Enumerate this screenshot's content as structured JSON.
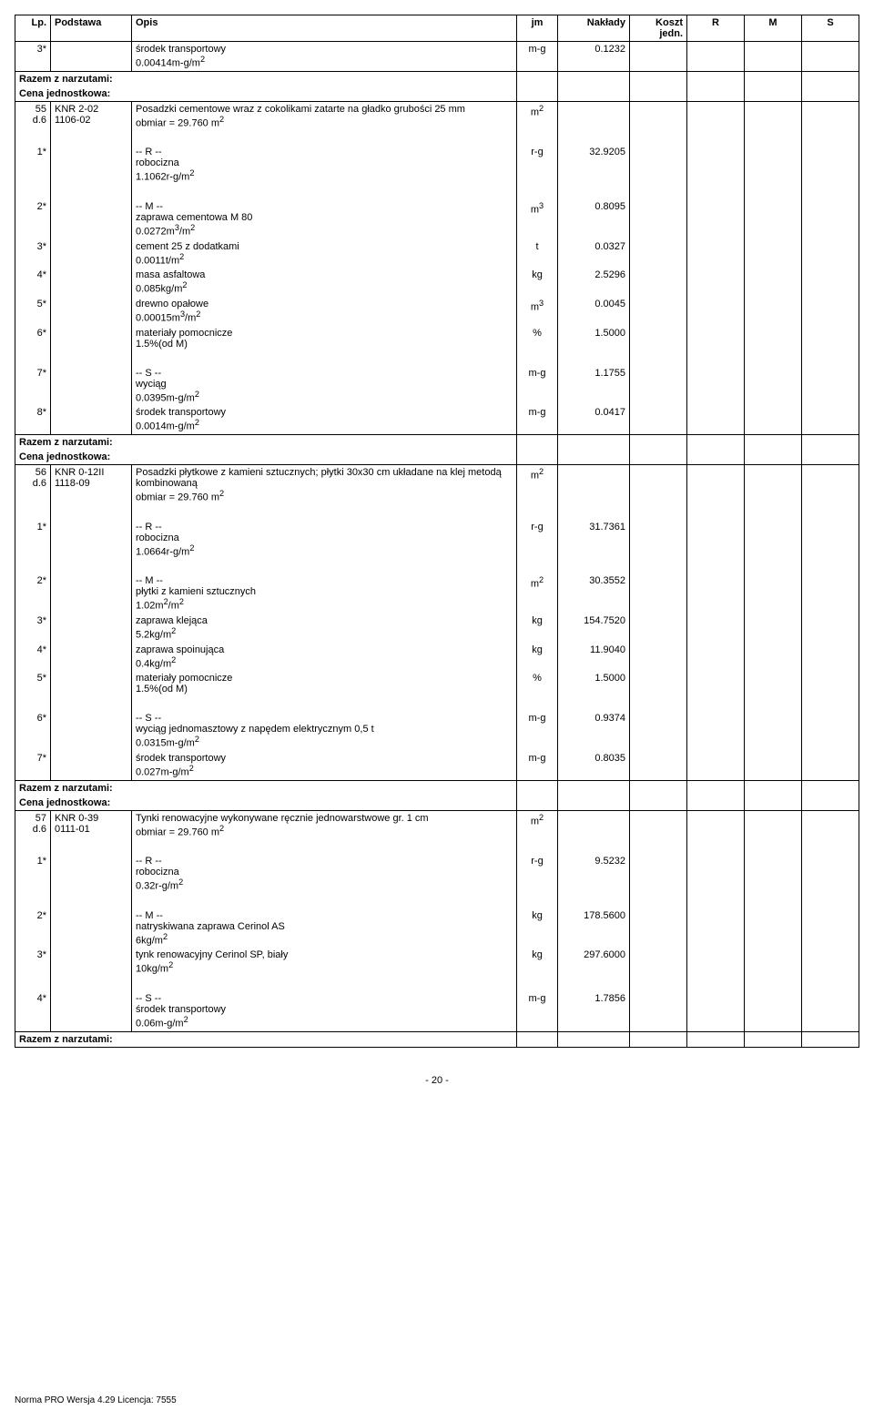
{
  "headers": {
    "lp": "Lp.",
    "podstawa": "Podstawa",
    "opis": "Opis",
    "jm": "jm",
    "naklady": "Nakłady",
    "koszt": "Koszt jedn.",
    "r": "R",
    "m": "M",
    "s": "S"
  },
  "rows": [
    {
      "lp": "3*",
      "podstawa": "",
      "opis": "środek transportowy\n0.00414m-g/m2",
      "jm": "m-g",
      "naklady": "0.1232",
      "border": "noborder-t"
    },
    {
      "lp": "",
      "podstawa": "",
      "opis_bold": "Razem z narzutami:",
      "border": "noborder-tb",
      "span_razem": true
    },
    {
      "lp": "",
      "podstawa": "",
      "opis_bold": "Cena jednostkowa:",
      "border": "noborder-t",
      "span_razem": true
    },
    {
      "lp": "55\nd.6",
      "podstawa": "KNR 2-02\n1106-02",
      "opis": "Posadzki cementowe wraz z cokolikami zatarte na gładko grubości 25 mm\nobmiar  = 29.760 m2",
      "jm": "m2",
      "naklady": "",
      "border": "noborder-b"
    },
    {
      "lp": "",
      "podstawa": "",
      "opis": "",
      "jm": "",
      "naklady": "",
      "border": "noborder-tb",
      "spacer": true
    },
    {
      "lp": "1*",
      "podstawa": "",
      "opis": "-- R --\nrobocizna\n1.1062r-g/m2",
      "jm": "r-g",
      "naklady": "32.9205",
      "border": "noborder-tb"
    },
    {
      "lp": "",
      "podstawa": "",
      "opis": "",
      "jm": "",
      "naklady": "",
      "border": "noborder-tb",
      "spacer": true
    },
    {
      "lp": "2*",
      "podstawa": "",
      "opis": "-- M --\nzaprawa cementowa M 80\n0.0272m3/m2",
      "jm": "m3",
      "naklady": "0.8095",
      "border": "noborder-tb"
    },
    {
      "lp": "3*",
      "podstawa": "",
      "opis": "cement 25 z dodatkami\n0.0011t/m2",
      "jm": "t",
      "naklady": "0.0327",
      "border": "noborder-tb"
    },
    {
      "lp": "4*",
      "podstawa": "",
      "opis": "masa asfaltowa\n0.085kg/m2",
      "jm": "kg",
      "naklady": "2.5296",
      "border": "noborder-tb"
    },
    {
      "lp": "5*",
      "podstawa": "",
      "opis": "drewno opałowe\n0.00015m3/m2",
      "jm": "m3",
      "naklady": "0.0045",
      "border": "noborder-tb"
    },
    {
      "lp": "6*",
      "podstawa": "",
      "opis": "materiały pomocnicze\n1.5%(od M)",
      "jm": "%",
      "naklady": "1.5000",
      "border": "noborder-tb"
    },
    {
      "lp": "",
      "podstawa": "",
      "opis": "",
      "jm": "",
      "naklady": "",
      "border": "noborder-tb",
      "spacer": true
    },
    {
      "lp": "7*",
      "podstawa": "",
      "opis": "-- S --\nwyciąg\n0.0395m-g/m2",
      "jm": "m-g",
      "naklady": "1.1755",
      "border": "noborder-tb"
    },
    {
      "lp": "8*",
      "podstawa": "",
      "opis": "środek transportowy\n0.0014m-g/m2",
      "jm": "m-g",
      "naklady": "0.0417",
      "border": "noborder-t"
    },
    {
      "lp": "",
      "podstawa": "",
      "opis_bold": "Razem z narzutami:",
      "border": "noborder-tb",
      "span_razem": true
    },
    {
      "lp": "",
      "podstawa": "",
      "opis_bold": "Cena jednostkowa:",
      "border": "noborder-t",
      "span_razem": true
    },
    {
      "lp": "56\nd.6",
      "podstawa": "KNR 0-12II\n1118-09",
      "opis": "Posadzki płytkowe z kamieni sztucznych; płytki 30x30 cm układane na klej metodą kombinowaną\nobmiar  = 29.760 m2",
      "jm": "m2",
      "naklady": "",
      "border": "noborder-b"
    },
    {
      "lp": "",
      "podstawa": "",
      "opis": "",
      "jm": "",
      "naklady": "",
      "border": "noborder-tb",
      "spacer": true
    },
    {
      "lp": "1*",
      "podstawa": "",
      "opis": "-- R --\nrobocizna\n1.0664r-g/m2",
      "jm": "r-g",
      "naklady": "31.7361",
      "border": "noborder-tb"
    },
    {
      "lp": "",
      "podstawa": "",
      "opis": "",
      "jm": "",
      "naklady": "",
      "border": "noborder-tb",
      "spacer": true
    },
    {
      "lp": "2*",
      "podstawa": "",
      "opis": "-- M --\npłytki z kamieni sztucznych\n1.02m2/m2",
      "jm": "m2",
      "naklady": "30.3552",
      "border": "noborder-tb"
    },
    {
      "lp": "3*",
      "podstawa": "",
      "opis": "zaprawa klejąca\n5.2kg/m2",
      "jm": "kg",
      "naklady": "154.7520",
      "border": "noborder-tb"
    },
    {
      "lp": "4*",
      "podstawa": "",
      "opis": "zaprawa spoinująca\n0.4kg/m2",
      "jm": "kg",
      "naklady": "11.9040",
      "border": "noborder-tb"
    },
    {
      "lp": "5*",
      "podstawa": "",
      "opis": "materiały pomocnicze\n1.5%(od M)",
      "jm": "%",
      "naklady": "1.5000",
      "border": "noborder-tb"
    },
    {
      "lp": "",
      "podstawa": "",
      "opis": "",
      "jm": "",
      "naklady": "",
      "border": "noborder-tb",
      "spacer": true
    },
    {
      "lp": "6*",
      "podstawa": "",
      "opis": "-- S --\nwyciąg jednomasztowy z napędem elektrycznym 0,5 t\n0.0315m-g/m2",
      "jm": "m-g",
      "naklady": "0.9374",
      "border": "noborder-tb"
    },
    {
      "lp": "7*",
      "podstawa": "",
      "opis": "środek transportowy\n0.027m-g/m2",
      "jm": "m-g",
      "naklady": "0.8035",
      "border": "noborder-t"
    },
    {
      "lp": "",
      "podstawa": "",
      "opis_bold": "Razem z narzutami:",
      "border": "noborder-tb",
      "span_razem": true
    },
    {
      "lp": "",
      "podstawa": "",
      "opis_bold": "Cena jednostkowa:",
      "border": "noborder-t",
      "span_razem": true
    },
    {
      "lp": "57\nd.6",
      "podstawa": "KNR 0-39\n0111-01",
      "opis": "Tynki renowacyjne wykonywane ręcznie jednowarstwowe gr. 1 cm\nobmiar  = 29.760 m2",
      "jm": "m2",
      "naklady": "",
      "border": "noborder-b"
    },
    {
      "lp": "",
      "podstawa": "",
      "opis": "",
      "jm": "",
      "naklady": "",
      "border": "noborder-tb",
      "spacer": true
    },
    {
      "lp": "1*",
      "podstawa": "",
      "opis": "-- R --\nrobocizna\n0.32r-g/m2",
      "jm": "r-g",
      "naklady": "9.5232",
      "border": "noborder-tb"
    },
    {
      "lp": "",
      "podstawa": "",
      "opis": "",
      "jm": "",
      "naklady": "",
      "border": "noborder-tb",
      "spacer": true
    },
    {
      "lp": "2*",
      "podstawa": "",
      "opis": "-- M --\nnatryskiwana zaprawa Cerinol AS\n6kg/m2",
      "jm": "kg",
      "naklady": "178.5600",
      "border": "noborder-tb"
    },
    {
      "lp": "3*",
      "podstawa": "",
      "opis": "tynk renowacyjny Cerinol SP, biały\n10kg/m2",
      "jm": "kg",
      "naklady": "297.6000",
      "border": "noborder-tb"
    },
    {
      "lp": "",
      "podstawa": "",
      "opis": "",
      "jm": "",
      "naklady": "",
      "border": "noborder-tb",
      "spacer": true
    },
    {
      "lp": "4*",
      "podstawa": "",
      "opis": "-- S --\nśrodek transportowy\n0.06m-g/m2",
      "jm": "m-g",
      "naklady": "1.7856",
      "border": "noborder-t"
    },
    {
      "lp": "",
      "podstawa": "",
      "opis_bold": "Razem z narzutami:",
      "border": "noborder-t",
      "span_razem": true,
      "last": true
    }
  ],
  "pagenum": "- 20 -",
  "footer": "Norma PRO Wersja 4.29 Licencja: 7555"
}
